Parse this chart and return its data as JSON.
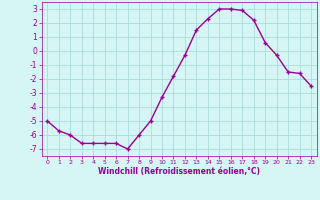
{
  "hours": [
    0,
    1,
    2,
    3,
    4,
    5,
    6,
    7,
    8,
    9,
    10,
    11,
    12,
    13,
    14,
    15,
    16,
    17,
    18,
    19,
    20,
    21,
    22,
    23
  ],
  "windchill": [
    -5.0,
    -5.7,
    -6.0,
    -6.6,
    -6.6,
    -6.6,
    -6.6,
    -7.0,
    -6.0,
    -5.0,
    -3.3,
    -1.8,
    -0.3,
    1.5,
    2.3,
    3.0,
    3.0,
    2.9,
    2.2,
    0.6,
    -0.3,
    -1.5,
    -1.6,
    -2.5
  ],
  "line_color": "#990099",
  "marker": "+",
  "marker_size": 3,
  "bg_color": "#d6f5f5",
  "grid_color": "#aadddd",
  "tick_color": "#990099",
  "label_color": "#990099",
  "xlabel": "Windchill (Refroidissement éolien,°C)",
  "ylim": [
    -7.5,
    3.5
  ],
  "xlim": [
    -0.5,
    23.5
  ],
  "yticks": [
    -7,
    -6,
    -5,
    -4,
    -3,
    -2,
    -1,
    0,
    1,
    2,
    3
  ],
  "xticks": [
    0,
    1,
    2,
    3,
    4,
    5,
    6,
    7,
    8,
    9,
    10,
    11,
    12,
    13,
    14,
    15,
    16,
    17,
    18,
    19,
    20,
    21,
    22,
    23
  ],
  "line_width": 1.0,
  "figsize": [
    3.2,
    2.0
  ],
  "dpi": 100
}
